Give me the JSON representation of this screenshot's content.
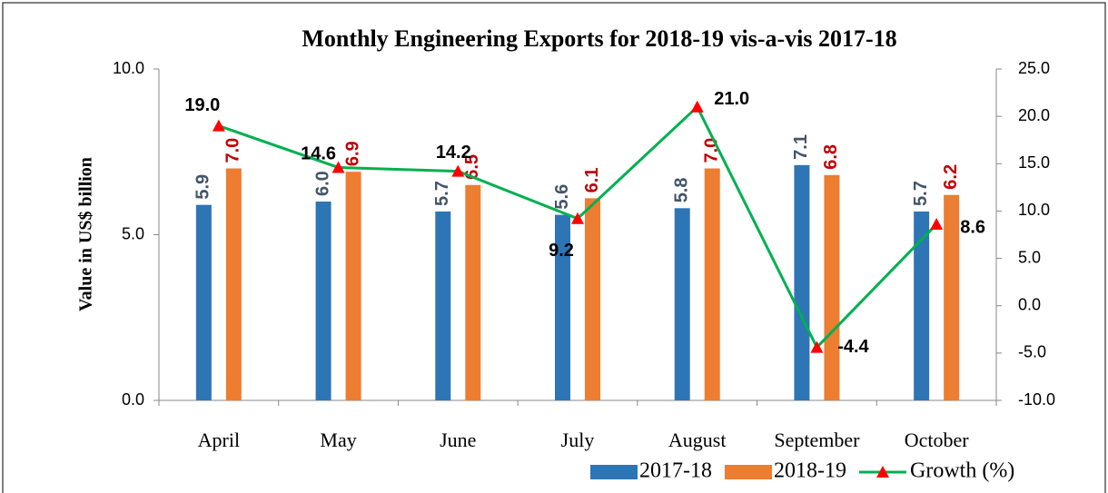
{
  "chart_data": {
    "type": "bar",
    "title": "Monthly Engineering Exports for 2018-19 vis-a-vis 2017-18",
    "y_label": "Value in US$ billion",
    "categories": [
      "April",
      "May",
      "June",
      "July",
      "August",
      "September",
      "October"
    ],
    "series": [
      {
        "name": "2017-18",
        "type": "bar",
        "color": "#2e75b6",
        "label_color": "#44546a",
        "values": [
          5.9,
          6.0,
          5.7,
          5.6,
          5.8,
          7.1,
          5.7
        ],
        "value_labels": [
          "5.9",
          "6.0",
          "5.7",
          "5.6",
          "5.8",
          "7.1",
          "5.7"
        ]
      },
      {
        "name": "2018-19",
        "type": "bar",
        "color": "#ed7d31",
        "label_color": "#c00000",
        "values": [
          7.0,
          6.9,
          6.5,
          6.1,
          7.0,
          6.8,
          6.2
        ],
        "value_labels": [
          "7.0",
          "6.9",
          "6.5",
          "6.1",
          "7.0",
          "6.8",
          "6.2"
        ]
      },
      {
        "name": "Growth (%)",
        "type": "line",
        "axis": "y2",
        "color": "#00b050",
        "marker_color": "#ff0000",
        "label_color": "#000000",
        "values": [
          19.0,
          14.6,
          14.2,
          9.2,
          21.0,
          -4.4,
          8.6
        ],
        "value_labels": [
          "19.0",
          "14.6",
          "14.2",
          "9.2",
          "21.0",
          "-4.4",
          "8.6"
        ]
      }
    ],
    "ylim": [
      0,
      10
    ],
    "yticks": [
      {
        "value": 0,
        "label": "0.0"
      },
      {
        "value": 5,
        "label": "5.0"
      },
      {
        "value": 10,
        "label": "10.0"
      }
    ],
    "y2lim": [
      -10,
      25
    ],
    "y2ticks": [
      {
        "value": -10,
        "label": "-10.0"
      },
      {
        "value": -5,
        "label": "-5.0"
      },
      {
        "value": 0,
        "label": "0.0"
      },
      {
        "value": 5,
        "label": "5.0"
      },
      {
        "value": 10,
        "label": "10.0"
      },
      {
        "value": 15,
        "label": "15.0"
      },
      {
        "value": 20,
        "label": "20.0"
      },
      {
        "value": 25,
        "label": "25.0"
      }
    ],
    "grid": false,
    "legend": "bottom-right"
  }
}
